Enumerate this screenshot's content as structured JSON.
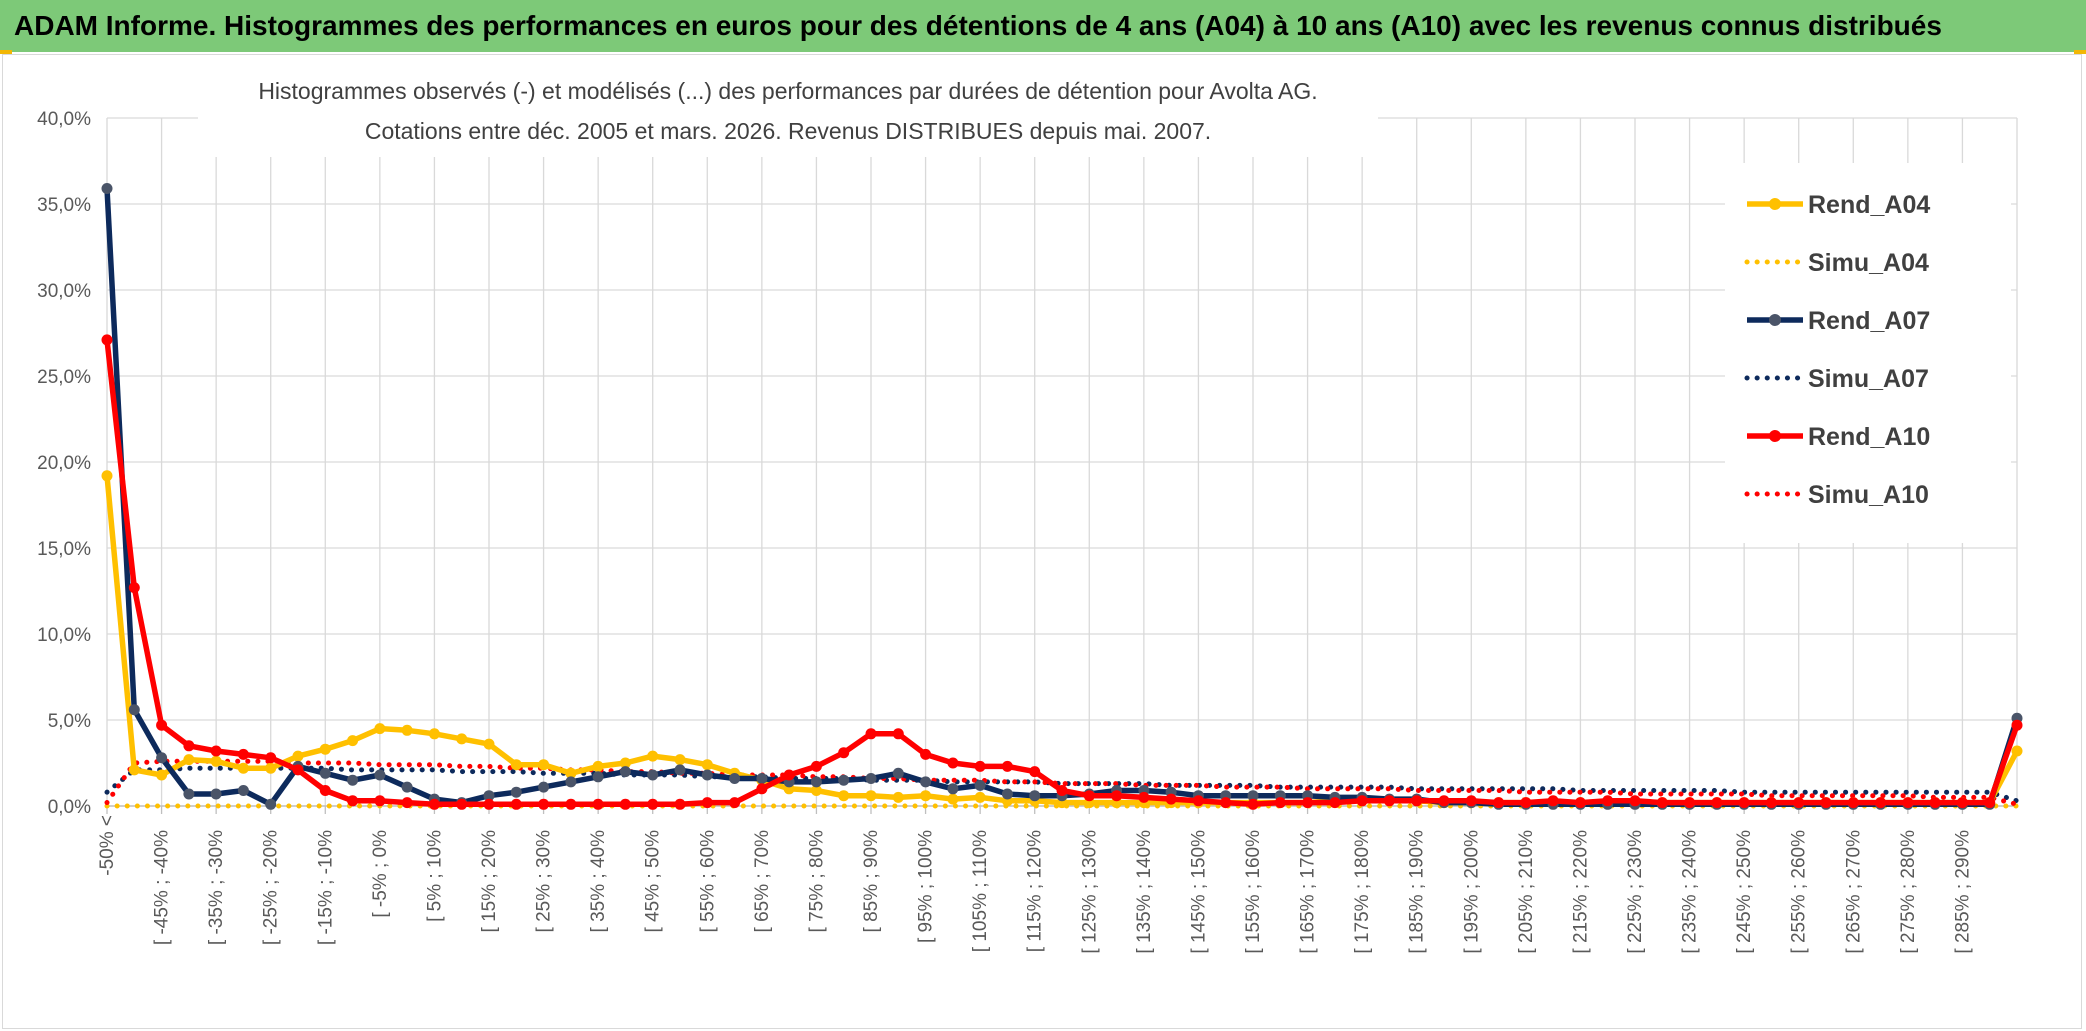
{
  "header": {
    "banner_title": "ADAM Informe. Histogrammes des performances en euros pour des détentions de 4 ans (A04) à 10 ans (A10) avec les revenus connus distribués"
  },
  "colors": {
    "banner_bg": "#7dc978",
    "A04": "#ffc000",
    "A07": "#0d2a5c",
    "A07_marker": "#4a5468",
    "A10": "#ff0000"
  },
  "chart_data": {
    "type": "line",
    "title_line1": "Histogrammes observés (-) et modélisés (...) des performances par durées de détention pour Avolta AG.",
    "title_line2": "Cotations entre déc. 2005 et mars. 2026. Revenus DISTRIBUES depuis mai. 2007.",
    "xlabel": "",
    "ylabel": "",
    "ylim": [
      0,
      40
    ],
    "y_ticks": [
      "0,0%",
      "5,0%",
      "10,0%",
      "15,0%",
      "20,0%",
      "25,0%",
      "30,0%",
      "35,0%",
      "40,0%"
    ],
    "grid": true,
    "legend_position": "right",
    "x_tick_labels": [
      "-50% <",
      "[ -45% ; -40%",
      "[ -35% ; -30%",
      "[ -25% ; -20%",
      "[ -15% ; -10%",
      "[ -5% ; 0%",
      "[ 5% ; 10%",
      "[ 15% ; 20%",
      "[ 25% ; 30%",
      "[ 35% ; 40%",
      "[ 45% ; 50%",
      "[ 55% ; 60%",
      "[ 65% ; 70%",
      "[ 75% ; 80%",
      "[ 85% ; 90%",
      "[ 95% ; 100%",
      "[ 105% ; 110%",
      "[ 115% ; 120%",
      "[ 125% ; 130%",
      "[ 135% ; 140%",
      "[ 145% ; 150%",
      "[ 155% ; 160%",
      "[ 165% ; 170%",
      "[ 175% ; 180%",
      "[ 185% ; 190%",
      "[ 195% ; 200%",
      "[ 205% ; 210%",
      "[ 215% ; 220%",
      "[ 225% ; 230%",
      "[ 235% ; 240%",
      "[ 245% ; 250%",
      "[ 255% ; 260%",
      "[ 265% ; 270%",
      "[ 275% ; 280%",
      "[ 285% ; 290%"
    ],
    "n_bins": 71,
    "series": [
      {
        "name": "Rend_A04",
        "style": "solid",
        "color": "#ffc000",
        "values": [
          19.2,
          2.1,
          1.8,
          2.7,
          2.6,
          2.2,
          2.2,
          2.9,
          3.3,
          3.8,
          4.5,
          4.4,
          4.2,
          3.9,
          3.6,
          2.4,
          2.4,
          1.9,
          2.3,
          2.5,
          2.9,
          2.7,
          2.4,
          1.9,
          1.5,
          1.0,
          0.9,
          0.6,
          0.6,
          0.5,
          0.6,
          0.4,
          0.5,
          0.3,
          0.3,
          0.2,
          0.2,
          0.2,
          0.2,
          0.2,
          0.2,
          0.2,
          0.2,
          0.2,
          0.2,
          0.3,
          0.3,
          0.3,
          0.3,
          0.2,
          0.2,
          0.2,
          0.2,
          0.2,
          0.2,
          0.2,
          0.2,
          0.2,
          0.2,
          0.2,
          0.2,
          0.2,
          0.2,
          0.2,
          0.2,
          0.2,
          0.2,
          0.2,
          0.2,
          0.2,
          3.2
        ]
      },
      {
        "name": "Simu_A04",
        "style": "dotted",
        "color": "#ffc000",
        "values": [
          0.0,
          0.0,
          0.0,
          0.0,
          0.0,
          0.0,
          0.0,
          0.0,
          0.0,
          0.0,
          0.0,
          0.0,
          0.0,
          0.0,
          0.0,
          0.0,
          0.0,
          0.0,
          0.0,
          0.0,
          0.0,
          0.0,
          0.0,
          0.0,
          0.0,
          0.0,
          0.0,
          0.0,
          0.0,
          0.0,
          0.0,
          0.0,
          0.0,
          0.0,
          0.0,
          0.0,
          0.0,
          0.0,
          0.0,
          0.0,
          0.0,
          0.0,
          0.0,
          0.0,
          0.0,
          0.0,
          0.0,
          0.0,
          0.0,
          0.0,
          0.0,
          0.0,
          0.0,
          0.0,
          0.0,
          0.0,
          0.0,
          0.0,
          0.0,
          0.0,
          0.0,
          0.0,
          0.0,
          0.0,
          0.0,
          0.0,
          0.0,
          0.0,
          0.0,
          0.0,
          0.0
        ]
      },
      {
        "name": "Rend_A07",
        "style": "solid",
        "color": "#0d2a5c",
        "values": [
          35.9,
          5.6,
          2.8,
          0.7,
          0.7,
          0.9,
          0.1,
          2.3,
          1.9,
          1.5,
          1.8,
          1.1,
          0.4,
          0.2,
          0.6,
          0.8,
          1.1,
          1.4,
          1.7,
          2.0,
          1.8,
          2.1,
          1.8,
          1.6,
          1.6,
          1.4,
          1.4,
          1.5,
          1.6,
          1.9,
          1.4,
          1.0,
          1.2,
          0.7,
          0.6,
          0.6,
          0.7,
          0.9,
          0.9,
          0.8,
          0.6,
          0.6,
          0.6,
          0.6,
          0.6,
          0.5,
          0.5,
          0.4,
          0.4,
          0.2,
          0.2,
          0.1,
          0.1,
          0.1,
          0.1,
          0.1,
          0.1,
          0.1,
          0.1,
          0.1,
          0.1,
          0.1,
          0.1,
          0.1,
          0.1,
          0.1,
          0.1,
          0.1,
          0.1,
          0.1,
          5.1
        ]
      },
      {
        "name": "Simu_A07",
        "style": "dotted",
        "color": "#0d2a5c",
        "values": [
          0.8,
          2.1,
          2.1,
          2.2,
          2.2,
          2.2,
          2.2,
          2.2,
          2.2,
          2.1,
          2.1,
          2.1,
          2.1,
          2.0,
          2.0,
          2.0,
          1.9,
          1.9,
          1.9,
          1.8,
          1.8,
          1.8,
          1.7,
          1.7,
          1.7,
          1.6,
          1.6,
          1.6,
          1.5,
          1.5,
          1.5,
          1.4,
          1.4,
          1.4,
          1.4,
          1.3,
          1.3,
          1.3,
          1.3,
          1.2,
          1.2,
          1.2,
          1.2,
          1.1,
          1.1,
          1.1,
          1.1,
          1.1,
          1.0,
          1.0,
          1.0,
          1.0,
          1.0,
          1.0,
          0.9,
          0.9,
          0.9,
          0.9,
          0.9,
          0.9,
          0.8,
          0.8,
          0.8,
          0.8,
          0.8,
          0.8,
          0.8,
          0.8,
          0.8,
          0.8,
          0.3
        ]
      },
      {
        "name": "Rend_A10",
        "style": "solid",
        "color": "#ff0000",
        "values": [
          27.1,
          12.7,
          4.7,
          3.5,
          3.2,
          3.0,
          2.8,
          2.1,
          0.9,
          0.3,
          0.3,
          0.2,
          0.1,
          0.1,
          0.1,
          0.1,
          0.1,
          0.1,
          0.1,
          0.1,
          0.1,
          0.1,
          0.2,
          0.2,
          1.0,
          1.8,
          2.3,
          3.1,
          4.2,
          4.2,
          3.0,
          2.5,
          2.3,
          2.3,
          2.0,
          0.9,
          0.6,
          0.6,
          0.5,
          0.4,
          0.3,
          0.2,
          0.1,
          0.2,
          0.2,
          0.2,
          0.3,
          0.3,
          0.3,
          0.3,
          0.3,
          0.2,
          0.2,
          0.3,
          0.2,
          0.3,
          0.3,
          0.2,
          0.2,
          0.2,
          0.2,
          0.2,
          0.2,
          0.2,
          0.2,
          0.2,
          0.2,
          0.2,
          0.2,
          0.2,
          4.7
        ]
      },
      {
        "name": "Simu_A10",
        "style": "dotted",
        "color": "#ff0000",
        "values": [
          0.2,
          2.5,
          2.6,
          2.6,
          2.6,
          2.6,
          2.6,
          2.5,
          2.5,
          2.5,
          2.4,
          2.4,
          2.4,
          2.3,
          2.3,
          2.2,
          2.2,
          2.1,
          2.1,
          2.0,
          2.0,
          1.9,
          1.9,
          1.8,
          1.8,
          1.8,
          1.7,
          1.7,
          1.6,
          1.6,
          1.5,
          1.5,
          1.5,
          1.4,
          1.4,
          1.3,
          1.3,
          1.3,
          1.2,
          1.2,
          1.2,
          1.1,
          1.1,
          1.1,
          1.0,
          1.0,
          1.0,
          1.0,
          0.9,
          0.9,
          0.9,
          0.9,
          0.8,
          0.8,
          0.8,
          0.8,
          0.7,
          0.7,
          0.7,
          0.7,
          0.7,
          0.6,
          0.6,
          0.6,
          0.6,
          0.6,
          0.6,
          0.5,
          0.5,
          0.5,
          0.1
        ]
      }
    ]
  }
}
